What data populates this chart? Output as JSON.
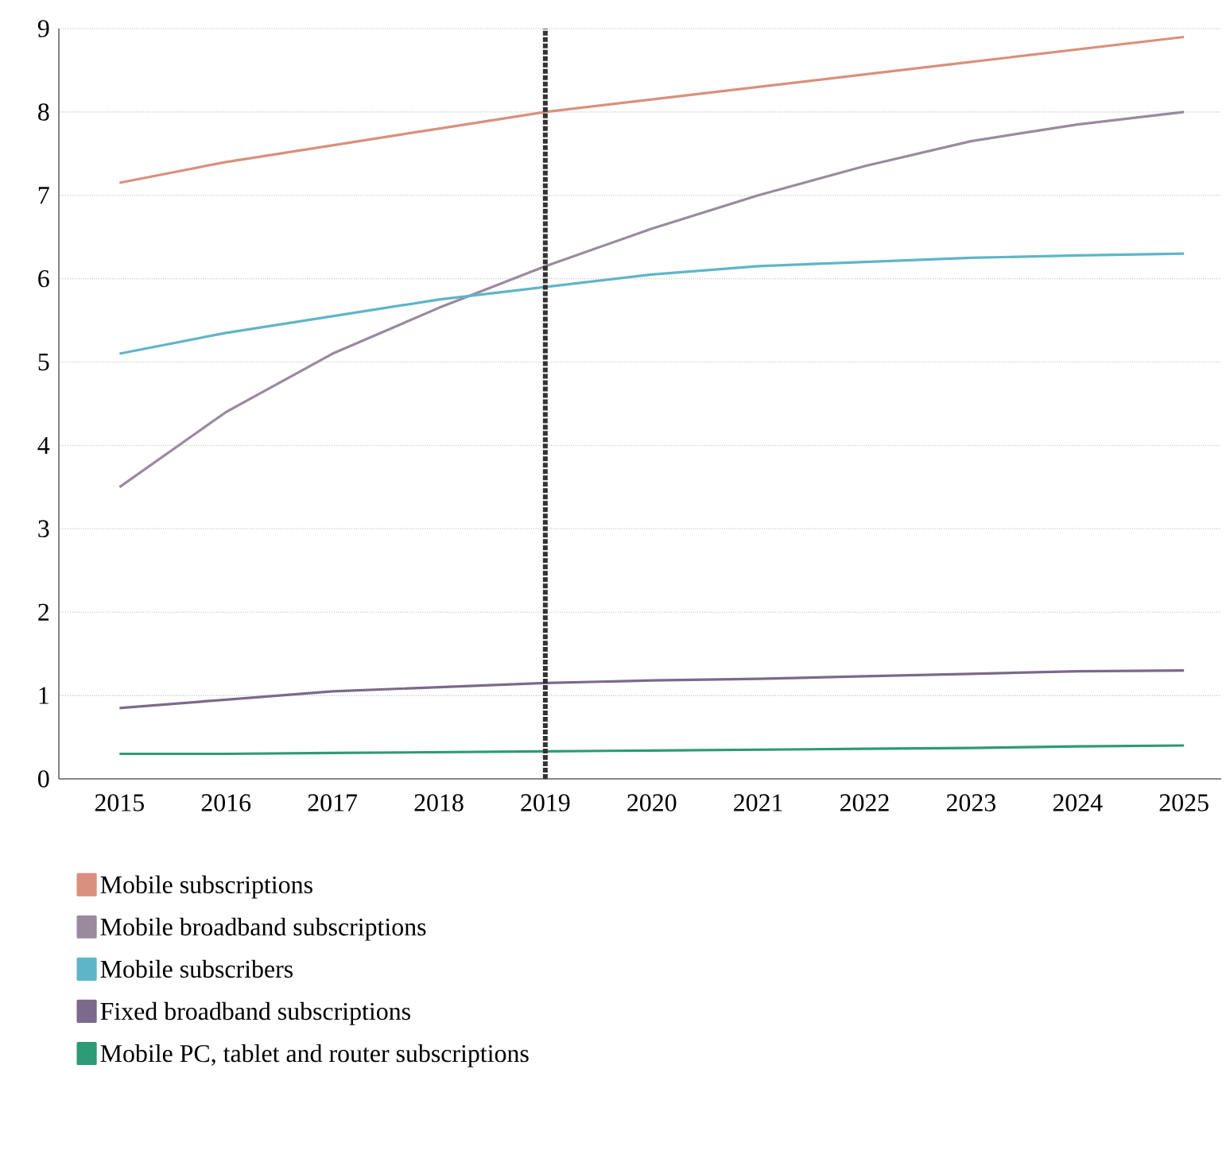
{
  "chart_data": {
    "type": "line",
    "x": [
      2015,
      2016,
      2017,
      2018,
      2019,
      2020,
      2021,
      2022,
      2023,
      2024,
      2025
    ],
    "series": [
      {
        "name": "Mobile subscriptions",
        "color": "#d9907e",
        "values": [
          7.15,
          7.4,
          7.6,
          7.8,
          8.0,
          8.15,
          8.3,
          8.45,
          8.6,
          8.75,
          8.9
        ]
      },
      {
        "name": "Mobile broadband subscriptions",
        "color": "#9a8a9e",
        "values": [
          3.5,
          4.4,
          5.1,
          5.65,
          6.15,
          6.6,
          7.0,
          7.35,
          7.65,
          7.85,
          8.0
        ]
      },
      {
        "name": "Mobile subscribers",
        "color": "#5fb5c8",
        "values": [
          5.1,
          5.35,
          5.55,
          5.75,
          5.9,
          6.05,
          6.15,
          6.2,
          6.25,
          6.28,
          6.3
        ]
      },
      {
        "name": "Fixed broadband subscriptions",
        "color": "#7b6a8c",
        "values": [
          0.85,
          0.95,
          1.05,
          1.1,
          1.15,
          1.18,
          1.2,
          1.23,
          1.26,
          1.29,
          1.3
        ]
      },
      {
        "name": "Mobile PC, tablet and router subscriptions",
        "color": "#2e9a76",
        "values": [
          0.3,
          0.3,
          0.31,
          0.32,
          0.33,
          0.34,
          0.35,
          0.36,
          0.37,
          0.39,
          0.4
        ]
      }
    ],
    "xlim": [
      2014.43,
      2025.35
    ],
    "ylim": [
      0,
      9
    ],
    "xticks": [
      2015,
      2016,
      2017,
      2018,
      2019,
      2020,
      2021,
      2022,
      2023,
      2024,
      2025
    ],
    "yticks": [
      0,
      1,
      2,
      3,
      4,
      5,
      6,
      7,
      8,
      9
    ],
    "ref_lines": [
      {
        "axis": "x",
        "value": 2019,
        "line_style": "dotted",
        "color": "#333333"
      }
    ],
    "grid": "y",
    "legend": "bottom",
    "marker": "none",
    "line_style": "solid"
  }
}
